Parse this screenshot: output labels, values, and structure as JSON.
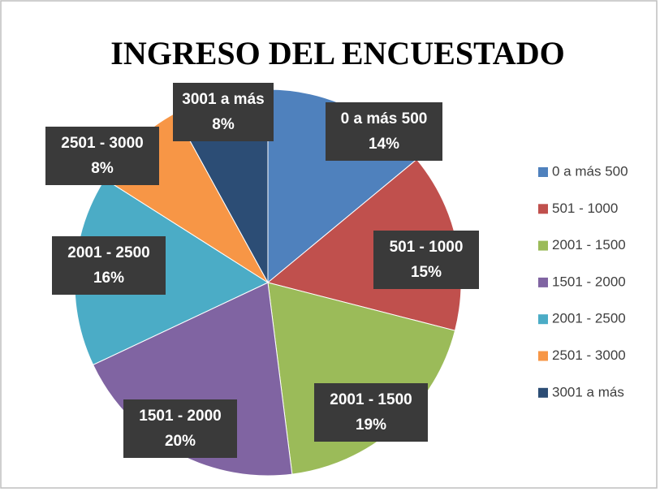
{
  "chart_data": {
    "type": "pie",
    "title": "INGRESO DEL ENCUESTADO",
    "categories": [
      "0 a más 500",
      "501 - 1000",
      "2001 - 1500",
      "1501 - 2000",
      "2001 - 2500",
      "2501 - 3000",
      "3001 a más"
    ],
    "values": [
      14,
      15,
      19,
      20,
      16,
      8,
      8
    ],
    "value_labels": [
      "14%",
      "15%",
      "19%",
      "20%",
      "16%",
      "8%",
      "8%"
    ],
    "colors": [
      "#4f81bd",
      "#c0504d",
      "#9bbb59",
      "#8064a2",
      "#4bacc6",
      "#f79646",
      "#2c4d75"
    ],
    "legend": "right"
  }
}
